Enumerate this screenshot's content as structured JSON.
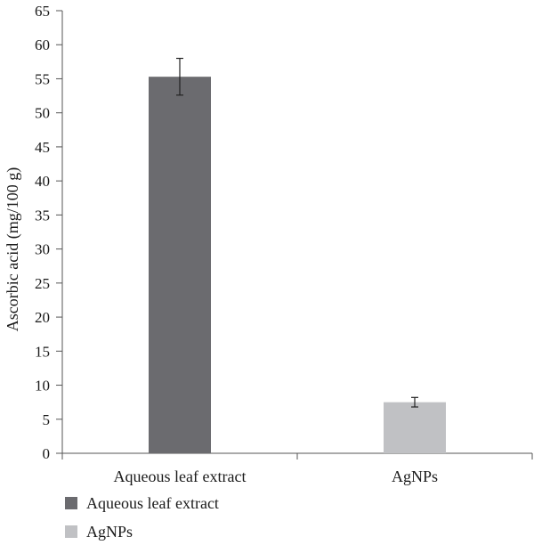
{
  "chart_data": {
    "type": "bar",
    "categories": [
      "Aqueous leaf extract",
      "AgNPs"
    ],
    "values": [
      55.3,
      7.5
    ],
    "error": [
      2.7,
      0.7
    ],
    "colors": [
      "#6b6b6f",
      "#c0c1c4"
    ],
    "title": "",
    "xlabel": "",
    "ylabel": "Ascorbic acid (mg/100 g)",
    "ylim": [
      0,
      65
    ],
    "yticks": [
      0,
      5,
      10,
      15,
      20,
      25,
      30,
      35,
      40,
      45,
      50,
      55,
      60,
      65
    ],
    "grid": false,
    "legend": {
      "placement": "bottom-left",
      "entries": [
        "Aqueous leaf extract",
        "AgNPs"
      ]
    }
  }
}
